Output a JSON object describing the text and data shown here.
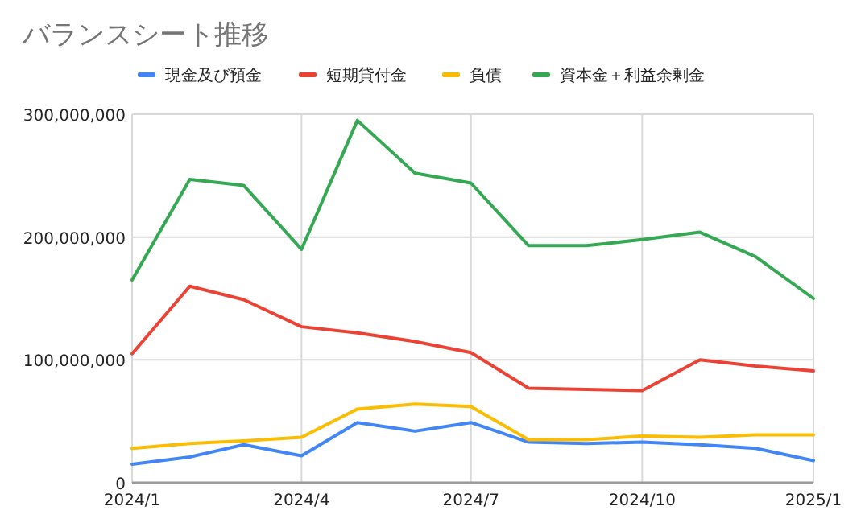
{
  "chart_data": {
    "type": "line",
    "title": "バランスシート推移",
    "x": [
      "2024-01",
      "2024-02",
      "2024-03",
      "2024-04",
      "2024-05",
      "2024-06",
      "2024-07",
      "2024-08",
      "2024-09",
      "2024-10",
      "2024-11",
      "2024-12",
      "2025-01"
    ],
    "series": [
      {
        "name": "現金及び預金",
        "color": "#4285f4",
        "values": [
          15000000,
          21000000,
          31000000,
          22000000,
          49000000,
          42000000,
          49000000,
          33000000,
          32000000,
          33000000,
          31000000,
          28000000,
          18000000
        ]
      },
      {
        "name": "短期貸付金",
        "color": "#ea4335",
        "values": [
          105000000,
          160000000,
          149000000,
          127000000,
          122000000,
          115000000,
          106000000,
          77000000,
          76000000,
          75000000,
          100000000,
          95000000,
          91000000
        ]
      },
      {
        "name": "負債",
        "color": "#fbbc04",
        "values": [
          28000000,
          32000000,
          34000000,
          37000000,
          60000000,
          64000000,
          62000000,
          35000000,
          35000000,
          38000000,
          37000000,
          39000000,
          39000000
        ]
      },
      {
        "name": "資本金＋利益余剰金",
        "color": "#34a853",
        "values": [
          165000000,
          247000000,
          242000000,
          190000000,
          295000000,
          252000000,
          244000000,
          193000000,
          193000000,
          198000000,
          204000000,
          184000000,
          150000000
        ]
      }
    ],
    "xlim": [
      "2024-01",
      "2025-01"
    ],
    "xticks": [
      {
        "value": "2024-01",
        "label": "2024/1"
      },
      {
        "value": "2024-04",
        "label": "2024/4"
      },
      {
        "value": "2024-07",
        "label": "2024/7"
      },
      {
        "value": "2024-10",
        "label": "2024/10"
      },
      {
        "value": "2025-01",
        "label": "2025/1"
      }
    ],
    "ylim": [
      0,
      300000000
    ],
    "yticks": [
      {
        "value": 0,
        "label": "0"
      },
      {
        "value": 100000000,
        "label": "100,000,000"
      },
      {
        "value": 200000000,
        "label": "200,000,000"
      },
      {
        "value": 300000000,
        "label": "300,000,000"
      }
    ],
    "grid": true,
    "legend": "top",
    "marker": "none",
    "line_style": "solid"
  }
}
